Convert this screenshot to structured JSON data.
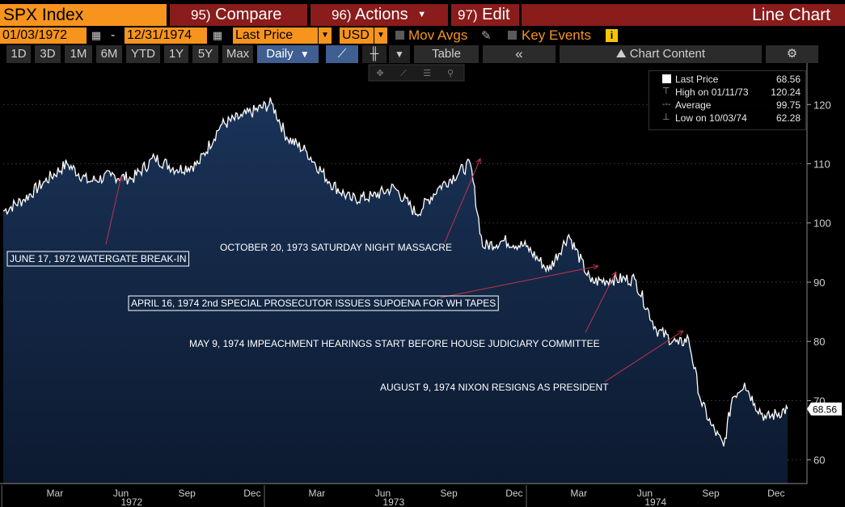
{
  "header": {
    "ticker": "SPX Index",
    "compare_num": "95)",
    "compare_label": "Compare",
    "actions_num": "96)",
    "actions_label": "Actions",
    "edit_num": "97)",
    "edit_label": "Edit",
    "chart_title": "Line Chart"
  },
  "controls": {
    "start_date": "01/03/1972",
    "date_sep": "-",
    "end_date": "12/31/1974",
    "field": "Last Price",
    "currency": "USD",
    "mov_avgs": "Mov Avgs",
    "key_events": "Key Events"
  },
  "toolbar": {
    "ranges": [
      "1D",
      "3D",
      "1M",
      "6M",
      "YTD",
      "1Y",
      "5Y",
      "Max"
    ],
    "frequency": "Daily",
    "table_label": "Table",
    "chart_content_label": "Chart Content"
  },
  "legend": {
    "last_price_label": "Last Price",
    "last_price_value": "68.56",
    "high_label": "High on 01/11/73",
    "high_value": "120.24",
    "average_label": "Average",
    "average_value": "99.75",
    "low_label": "Low on 10/03/74",
    "low_value": "62.28"
  },
  "colors": {
    "accent_orange": "#f7941d",
    "menu_red": "#8a1c1c",
    "area_fill": "#14243f",
    "line": "#ffffff",
    "annotation_arrow": "#c0334d"
  },
  "chart_data": {
    "type": "area",
    "series": [
      {
        "name": "SPX Index",
        "x": [
          "1972-01-03",
          "1972-02-01",
          "1972-03-01",
          "1972-04-01",
          "1972-05-01",
          "1972-06-01",
          "1972-07-01",
          "1972-08-01",
          "1972-09-01",
          "1972-10-01",
          "1972-11-01",
          "1972-12-01",
          "1973-01-11",
          "1973-02-01",
          "1973-03-01",
          "1973-04-01",
          "1973-05-01",
          "1973-06-01",
          "1973-07-01",
          "1973-08-01",
          "1973-09-01",
          "1973-10-15",
          "1973-11-01",
          "1973-12-01",
          "1974-01-01",
          "1974-02-01",
          "1974-03-01",
          "1974-04-01",
          "1974-05-01",
          "1974-06-01",
          "1974-07-01",
          "1974-08-01",
          "1974-08-15",
          "1974-09-01",
          "1974-09-15",
          "1974-10-03",
          "1974-10-15",
          "1974-11-01",
          "1974-11-15",
          "1974-12-01",
          "1974-12-31"
        ],
        "values": [
          102.0,
          104.0,
          107.0,
          110.0,
          107.0,
          108.0,
          107.5,
          111.0,
          109.0,
          110.0,
          116.5,
          118.0,
          120.2,
          114.5,
          112.0,
          107.0,
          104.0,
          104.5,
          106.0,
          101.5,
          106.0,
          110.0,
          96.0,
          97.0,
          96.0,
          92.0,
          98.0,
          90.0,
          90.5,
          90.5,
          82.0,
          79.5,
          80.5,
          70.0,
          66.0,
          62.3,
          70.5,
          73.0,
          69.5,
          67.0,
          68.6
        ]
      }
    ],
    "y_ticks": [
      60,
      70,
      80,
      90,
      100,
      110,
      120
    ],
    "ylim": [
      56,
      127
    ],
    "x_ticks": [
      "Mar",
      "Jun",
      "Sep",
      "Dec",
      "Mar",
      "Jun",
      "Sep",
      "Dec",
      "Mar",
      "Jun",
      "Sep",
      "Dec"
    ],
    "year_labels": [
      "1972",
      "1973",
      "1974"
    ],
    "last_value_label": "68.56",
    "annotations": [
      {
        "text": "JUNE 17, 1972 WATERGATE BREAK-IN",
        "boxed": true,
        "date": "1972-06-17"
      },
      {
        "text": "OCTOBER 20, 1973 SATURDAY NIGHT MASSACRE",
        "boxed": false,
        "date": "1973-10-20"
      },
      {
        "text": "APRIL 16, 1974 2nd SPECIAL PROSECUTOR ISSUES SUPOENA FOR WH TAPES",
        "boxed": true,
        "date": "1974-04-16"
      },
      {
        "text": "MAY 9, 1974 IMPEACHMENT HEARINGS START BEFORE HOUSE JUDICIARY COMMITTEE",
        "boxed": false,
        "date": "1974-05-09"
      },
      {
        "text": "AUGUST 9, 1974 NIXON RESIGNS AS PRESIDENT",
        "boxed": false,
        "date": "1974-08-09"
      }
    ]
  }
}
